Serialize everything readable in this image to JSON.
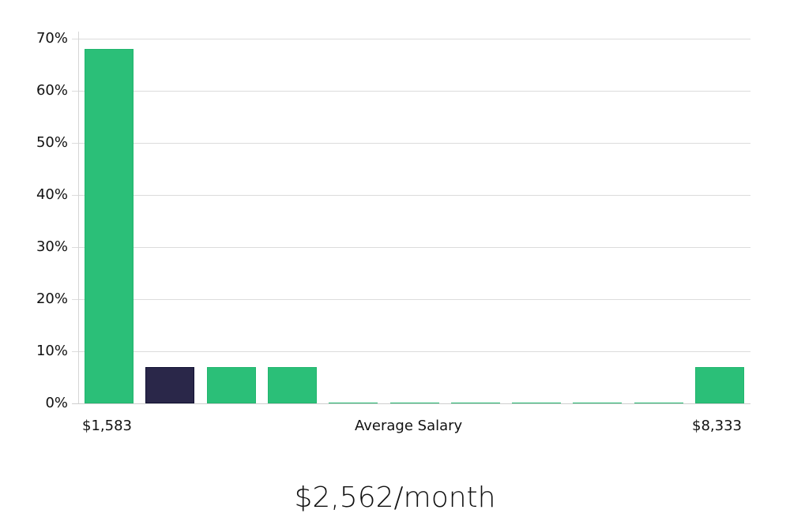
{
  "chart_data": {
    "type": "bar",
    "title": "",
    "xlabel": "Average Salary",
    "ylabel": "",
    "ylim": [
      0,
      70
    ],
    "yticks": [
      "0%",
      "10%",
      "20%",
      "30%",
      "40%",
      "50%",
      "60%",
      "70%"
    ],
    "grid": true,
    "legend": null,
    "x_range_labels": {
      "min": "$1,583",
      "max": "$8,333"
    },
    "categories": [
      "bin1",
      "bin2",
      "bin3",
      "bin4",
      "bin5",
      "bin6",
      "bin7",
      "bin8",
      "bin9",
      "bin10",
      "bin11"
    ],
    "values": [
      68,
      7,
      7,
      7,
      0,
      0,
      0,
      0,
      0,
      0,
      7
    ],
    "highlighted_index": 1,
    "colors": {
      "default": "#2bbf78",
      "highlight": "#2a2749",
      "highlight_border": "#111133"
    }
  },
  "axis": {
    "x_min_label": "$1,583",
    "x_title": "Average Salary",
    "x_max_label": "$8,333"
  },
  "caption": "$2,562/month"
}
